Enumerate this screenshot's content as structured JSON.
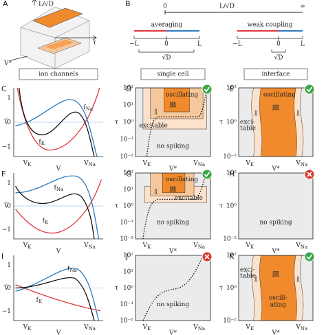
{
  "panel_a": {
    "letter": "A",
    "length_label": "L/√D",
    "tau_label": "τ",
    "v_label": "V*"
  },
  "panel_b": {
    "letter": "B",
    "scale": {
      "start": "0",
      "middle": "L/√D",
      "end": "∞"
    },
    "averaging": {
      "title": "averaging",
      "ticks": [
        "−L",
        "0",
        "L"
      ],
      "width": "√D"
    },
    "weak_coupling": {
      "title": "weak coupling",
      "ticks": [
        "−L",
        "0",
        "L"
      ],
      "width": "√D"
    }
  },
  "headers": [
    "ion channels",
    "single cell",
    "interface"
  ],
  "ion_axes": {
    "yticks": [
      "1",
      "0",
      "−1"
    ],
    "ylabel": "V̇",
    "xticks": [
      {
        "base": "V",
        "sub": "K"
      },
      {
        "base": "V",
        "sub": "Na"
      }
    ],
    "xlabel": "V"
  },
  "tau_axes": {
    "yticks": [
      "10²",
      "10¹",
      "10⁰",
      "10⁻¹",
      "10⁻²"
    ],
    "ylabel": "τ",
    "xticks": [
      {
        "base": "V",
        "sub": "K"
      },
      {
        "base": "V",
        "sub": "Na"
      }
    ],
    "xlabel": "V*"
  },
  "curve_labels": {
    "na": {
      "base": "f",
      "sub": "Na"
    },
    "k": {
      "base": "f",
      "sub": "K"
    }
  },
  "panels": [
    {
      "letter": "C"
    },
    {
      "letter": "D",
      "oscillating": "oscillating",
      "excitable": "excitable",
      "no_spiking": "no spiking"
    },
    {
      "letter": "E",
      "oscillating": "oscillating",
      "excitable": [
        "exci-",
        "table"
      ]
    },
    {
      "letter": "F"
    },
    {
      "letter": "G",
      "oscillating": "oscillating",
      "excitable": "excitable",
      "no_spiking": "no spiking"
    },
    {
      "letter": "H",
      "no_spiking": "no spiking"
    },
    {
      "letter": "I"
    },
    {
      "letter": "J",
      "no_spiking": "no spiking"
    },
    {
      "letter": "K",
      "oscillating": [
        "oscill-",
        "ating"
      ],
      "excitable": [
        "exci-",
        "table"
      ]
    }
  ]
}
